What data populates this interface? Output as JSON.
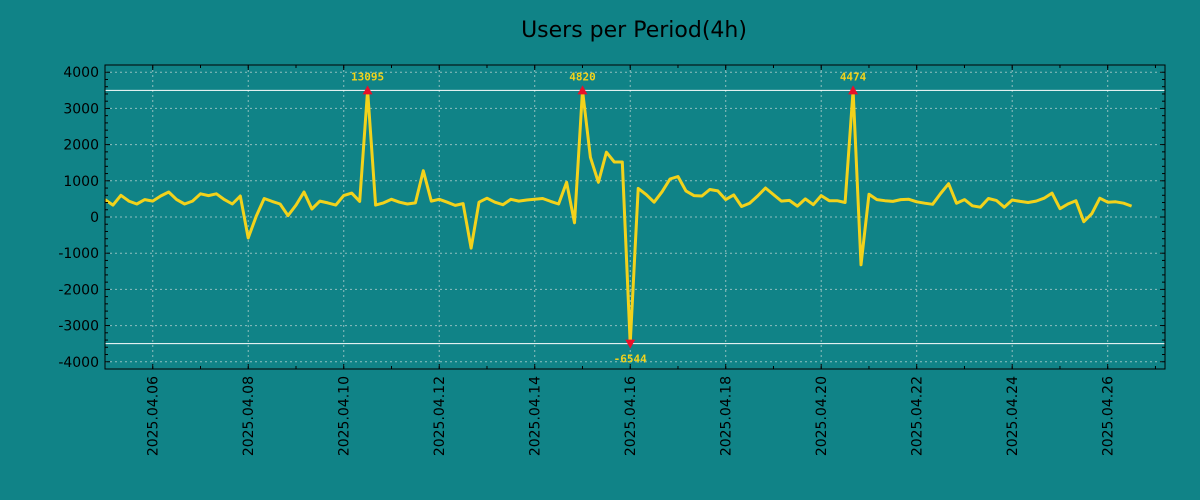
{
  "chart_data": {
    "type": "line",
    "title": "Users per Period(4h)",
    "xlabel": "",
    "ylabel": "",
    "ylim": [
      -4200,
      4200
    ],
    "y_ticks": [
      4000,
      3000,
      2000,
      1000,
      0,
      -1000,
      -2000,
      -3000,
      -4000
    ],
    "y_tick_labels": [
      "4000",
      "3000",
      "2000",
      "1000",
      "0",
      "-1000",
      "-2000",
      "-3000",
      "-4000"
    ],
    "x_range_days": [
      0,
      22.2
    ],
    "x_ticks_days": [
      1,
      3,
      5,
      7,
      9,
      11,
      13,
      15,
      17,
      19,
      21
    ],
    "x_tick_labels": [
      "2025.04.06",
      "2025.04.08",
      "2025.04.10",
      "2025.04.12",
      "2025.04.14",
      "2025.04.16",
      "2025.04.18",
      "2025.04.20",
      "2025.04.22",
      "2025.04.24",
      "2025.04.26"
    ],
    "grid": true,
    "upper_threshold": 3500,
    "lower_threshold": -3500,
    "series": [
      {
        "name": "Users per Period(4h)",
        "color": "#f2d21b",
        "step_days": 0.16667,
        "values": [
          480,
          330,
          600,
          440,
          360,
          480,
          440,
          580,
          690,
          480,
          360,
          440,
          640,
          590,
          640,
          480,
          360,
          580,
          -580,
          20,
          510,
          430,
          360,
          40,
          330,
          690,
          220,
          440,
          390,
          330,
          590,
          660,
          430,
          3500,
          330,
          390,
          490,
          410,
          360,
          390,
          1280,
          440,
          490,
          410,
          320,
          370,
          -860,
          410,
          520,
          410,
          340,
          490,
          440,
          470,
          490,
          510,
          430,
          360,
          960,
          -160,
          3500,
          1650,
          960,
          1790,
          1520,
          1520,
          -3500,
          790,
          620,
          410,
          700,
          1050,
          1120,
          720,
          590,
          580,
          760,
          720,
          480,
          610,
          290,
          380,
          580,
          800,
          620,
          440,
          460,
          300,
          500,
          340,
          590,
          450,
          450,
          400,
          3500,
          -1320,
          630,
          480,
          450,
          430,
          480,
          490,
          420,
          380,
          350,
          650,
          920,
          380,
          480,
          310,
          270,
          510,
          460,
          270,
          470,
          430,
          400,
          440,
          520,
          660,
          230,
          360,
          450,
          -130,
          90,
          520,
          410,
          420,
          380,
          300
        ]
      }
    ],
    "annotations": [
      {
        "label": "13095",
        "point_index": 33,
        "value": 3500
      },
      {
        "label": "4820",
        "point_index": 60,
        "value": 3500
      },
      {
        "label": "-6544",
        "point_index": 66,
        "value": -3500
      },
      {
        "label": "4474",
        "point_index": 94,
        "value": 3500
      }
    ],
    "colors": {
      "background": "#108387",
      "line": "#f2d21b",
      "marker": "#e8102a",
      "annotation_text": "#f2d21b",
      "threshold": "#ffffff",
      "grid": "#8fbfbf",
      "axis": "#000000"
    }
  }
}
